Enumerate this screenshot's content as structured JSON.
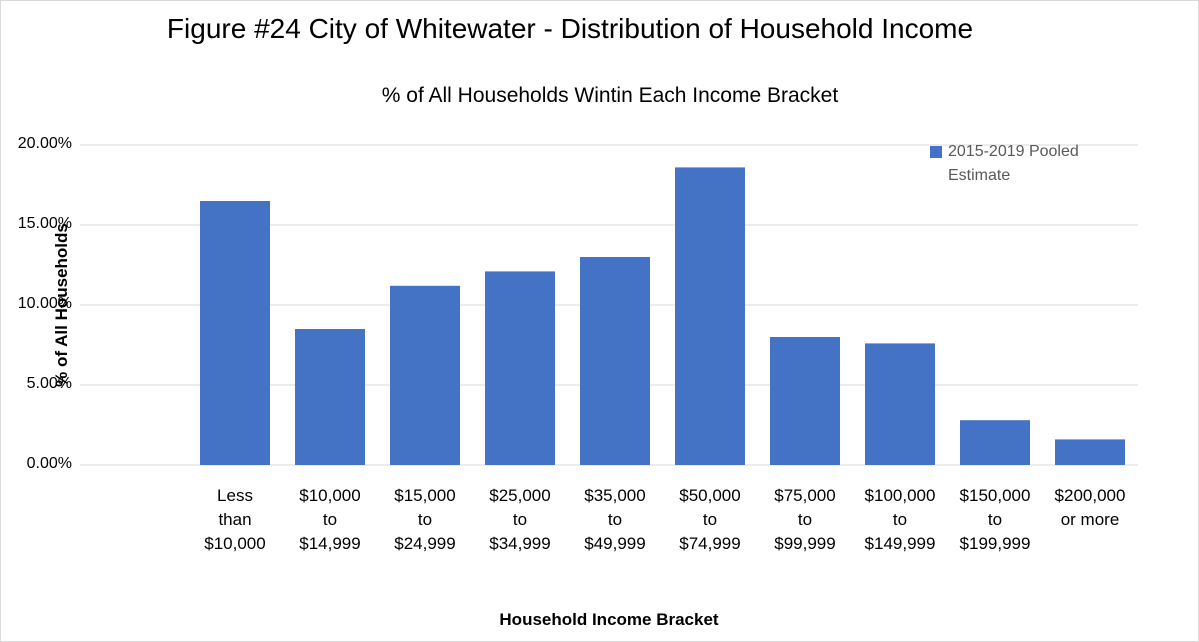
{
  "chart_data": {
    "type": "bar",
    "title": "Figure #24  City of Whitewater - Distribution of Household Income",
    "subtitle": "% of All Households Wintin Each Income Bracket",
    "x_label": "Household Income Bracket",
    "y_label": "% of All Households",
    "categories": [
      "Less\nthan\n$10,000",
      "$10,000\nto\n$14,999",
      "$15,000\nto\n$24,999",
      "$25,000\nto\n$34,999",
      "$35,000\nto\n$49,999",
      "$50,000\nto\n$74,999",
      "$75,000\nto\n$99,999",
      "$100,000\nto\n$149,999",
      "$150,000\nto\n$199,999",
      "$200,000\nor more"
    ],
    "series": [
      {
        "name": "2015-2019 Pooled Estimate",
        "color": "#4472c4",
        "values": [
          16.5,
          8.5,
          11.2,
          12.1,
          13.0,
          18.6,
          8.0,
          7.6,
          2.8,
          1.6
        ]
      }
    ],
    "ylim": [
      0,
      20
    ],
    "yticks": [
      {
        "value": 0,
        "label": "0.00%"
      },
      {
        "value": 5,
        "label": "5.00%"
      },
      {
        "value": 10,
        "label": "10.00%"
      },
      {
        "value": 15,
        "label": "15.00%"
      },
      {
        "value": 20,
        "label": "20.00%"
      }
    ],
    "grid": true,
    "legend": "top-right"
  }
}
